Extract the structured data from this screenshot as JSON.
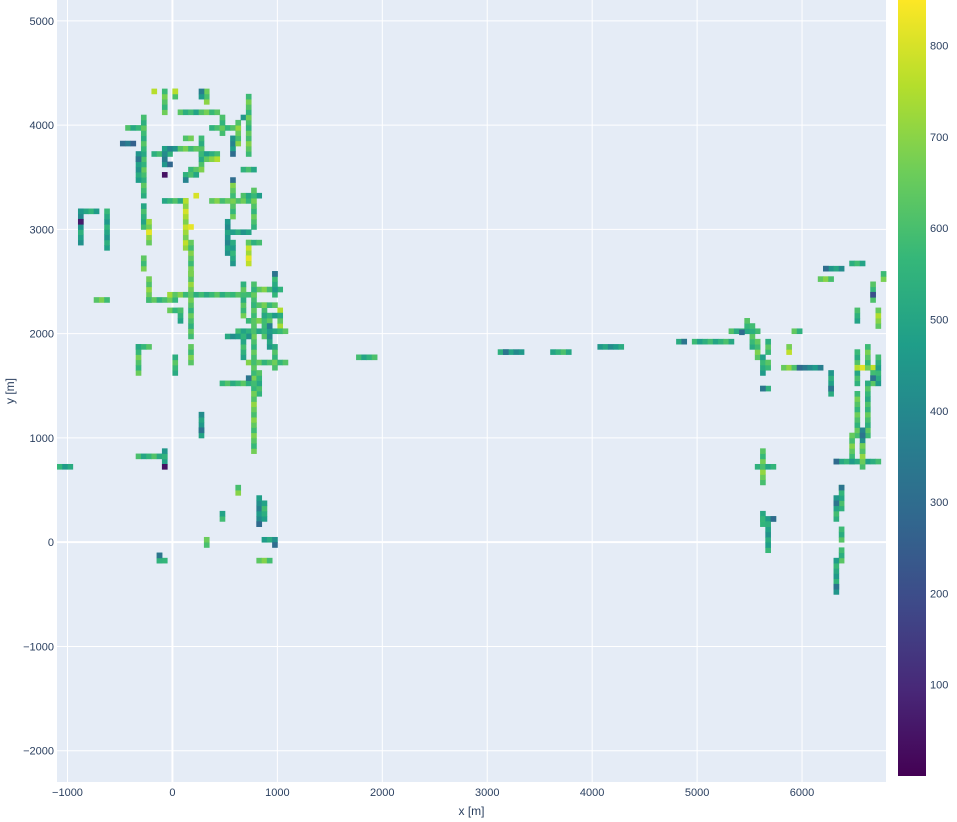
{
  "chart_data": {
    "type": "heatmap",
    "title": "",
    "xlabel": "x [m]",
    "ylabel": "y [m]",
    "xlim": [
      -1100,
      6800
    ],
    "ylim": [
      -2300,
      5200
    ],
    "cell_size": 50,
    "grid": true,
    "background": "#e5ecf6",
    "gridline_color": "#ffffff",
    "colorscale": "viridis",
    "zlim": [
      0,
      850
    ],
    "x_ticks": [
      -1000,
      0,
      1000,
      2000,
      3000,
      4000,
      5000,
      6000
    ],
    "x_tick_labels": [
      "−1000",
      "0",
      "1000",
      "2000",
      "3000",
      "4000",
      "5000",
      "6000"
    ],
    "y_ticks": [
      -2000,
      -1000,
      0,
      1000,
      2000,
      3000,
      4000,
      5000
    ],
    "y_tick_labels": [
      "−2000",
      "−1000",
      "0",
      "1000",
      "2000",
      "3000",
      "4000",
      "5000"
    ],
    "colorbar": {
      "ticks": [
        100,
        200,
        300,
        400,
        500,
        600,
        700,
        800
      ],
      "tick_labels": [
        "100",
        "200",
        "300",
        "400",
        "500",
        "600",
        "700",
        "800"
      ],
      "position": "right"
    },
    "segments": [
      {
        "x": [
          -900,
          -750
        ],
        "y": 3150,
        "z": 520
      },
      {
        "x": -900,
        "y": [
          2850,
          3150
        ],
        "z": 470
      },
      {
        "x": -650,
        "y": [
          2800,
          3150
        ],
        "z": 500
      },
      {
        "x": [
          -750,
          -650
        ],
        "y": 2300,
        "z": 610
      },
      {
        "x": [
          -1100,
          -1000
        ],
        "y": 680,
        "z": 520
      },
      {
        "x": [
          -450,
          -300
        ],
        "y": 3950,
        "z": 540
      },
      {
        "x": -300,
        "y": [
          3300,
          4050
        ],
        "z": 580
      },
      {
        "x": [
          -500,
          -400
        ],
        "y": 3800,
        "z": 330
      },
      {
        "x": -350,
        "y": [
          3450,
          3700
        ],
        "z": 470
      },
      {
        "x": -300,
        "y": [
          3000,
          3200
        ],
        "z": 560
      },
      {
        "x": -300,
        "y": [
          2600,
          2700
        ],
        "z": 620
      },
      {
        "x": -250,
        "y": [
          2850,
          3050
        ],
        "z": 720
      },
      {
        "x": -250,
        "y": [
          2300,
          2500
        ],
        "z": 640
      },
      {
        "x": [
          -250,
          0
        ],
        "y": 2300,
        "z": 600
      },
      {
        "x": [
          -200,
          -50
        ],
        "y": 3700,
        "z": 520
      },
      {
        "x": [
          -100,
          0
        ],
        "y": 3750,
        "z": 440
      },
      {
        "x": -100,
        "y": [
          3600,
          3700
        ],
        "z": 380
      },
      {
        "x": [
          -100,
          100
        ],
        "y": 3250,
        "z": 560
      },
      {
        "x": 100,
        "y": [
          2800,
          3250
        ],
        "z": 740
      },
      {
        "x": 150,
        "y": [
          2550,
          2850
        ],
        "z": 620
      },
      {
        "x": [
          -50,
          100
        ],
        "y": 2350,
        "z": 700
      },
      {
        "x": [
          -50,
          50
        ],
        "y": 2200,
        "z": 600
      },
      {
        "x": 50,
        "y": [
          2100,
          2200
        ],
        "z": 560
      },
      {
        "x": 150,
        "y": [
          2350,
          2550
        ],
        "z": 650
      },
      {
        "x": 150,
        "y": [
          1950,
          2350
        ],
        "z": 600
      },
      {
        "x": [
          100,
          250
        ],
        "y": 2350,
        "z": 560
      },
      {
        "x": -100,
        "y": [
          4100,
          4300
        ],
        "z": 620
      },
      {
        "x": [
          50,
          200
        ],
        "y": 4100,
        "z": 560
      },
      {
        "x": 0,
        "y": [
          4250,
          4300
        ],
        "z": 660
      },
      {
        "x": [
          100,
          150
        ],
        "y": 3850,
        "z": 640
      },
      {
        "x": [
          50,
          250
        ],
        "y": 3750,
        "z": 620
      },
      {
        "x": 250,
        "y": [
          3600,
          3850
        ],
        "z": 580
      },
      {
        "x": [
          250,
          400
        ],
        "y": 3700,
        "z": 520
      },
      {
        "x": [
          150,
          250
        ],
        "y": 3550,
        "z": 640
      },
      {
        "x": [
          300,
          400
        ],
        "y": 3650,
        "z": 680
      },
      {
        "x": [
          100,
          200
        ],
        "y": 3500,
        "z": 560
      },
      {
        "x": [
          250,
          400
        ],
        "y": 4100,
        "z": 600
      },
      {
        "x": 300,
        "y": [
          4200,
          4300
        ],
        "z": 660
      },
      {
        "x": 250,
        "y": [
          4250,
          4300
        ],
        "z": 390
      },
      {
        "x": [
          350,
          450
        ],
        "y": 3950,
        "z": 600
      },
      {
        "x": 450,
        "y": [
          3900,
          4050
        ],
        "z": 620
      },
      {
        "x": [
          500,
          600
        ],
        "y": 3950,
        "z": 560
      },
      {
        "x": 550,
        "y": [
          3750,
          3850
        ],
        "z": 450
      },
      {
        "x": 600,
        "y": [
          3800,
          4000
        ],
        "z": 640
      },
      {
        "x": [
          650,
          700
        ],
        "y": 4050,
        "z": 520
      },
      {
        "x": 700,
        "y": [
          3700,
          4250
        ],
        "z": 620
      },
      {
        "x": [
          650,
          750
        ],
        "y": 3550,
        "z": 560
      },
      {
        "x": [
          350,
          700
        ],
        "y": 3250,
        "z": 620
      },
      {
        "x": 550,
        "y": [
          3100,
          3400
        ],
        "z": 620
      },
      {
        "x": [
          650,
          800
        ],
        "y": 3300,
        "z": 540
      },
      {
        "x": 750,
        "y": [
          3000,
          3350
        ],
        "z": 600
      },
      {
        "x": 500,
        "y": [
          2750,
          3050
        ],
        "z": 460
      },
      {
        "x": [
          550,
          700
        ],
        "y": 2950,
        "z": 480
      },
      {
        "x": 700,
        "y": [
          2650,
          2850
        ],
        "z": 740
      },
      {
        "x": [
          700,
          800
        ],
        "y": 2850,
        "z": 580
      },
      {
        "x": 550,
        "y": [
          2650,
          2850
        ],
        "z": 520
      },
      {
        "x": [
          300,
          500
        ],
        "y": 2350,
        "z": 560
      },
      {
        "x": [
          550,
          750
        ],
        "y": 2350,
        "z": 580
      },
      {
        "x": [
          800,
          1000
        ],
        "y": 2400,
        "z": 620
      },
      {
        "x": 950,
        "y": [
          2350,
          2550
        ],
        "z": 520
      },
      {
        "x": 650,
        "y": [
          2150,
          2450
        ],
        "z": 600
      },
      {
        "x": 750,
        "y": [
          1450,
          2450
        ],
        "z": 620
      },
      {
        "x": 850,
        "y": [
          1950,
          2250
        ],
        "z": 650
      },
      {
        "x": 1000,
        "y": [
          2000,
          2200
        ],
        "z": 680
      },
      {
        "x": [
          600,
          1050
        ],
        "y": 2000,
        "z": 560
      },
      {
        "x": [
          500,
          700
        ],
        "y": 1950,
        "z": 460
      },
      {
        "x": [
          700,
          900
        ],
        "y": 2100,
        "z": 640
      },
      {
        "x": [
          750,
          950
        ],
        "y": 2250,
        "z": 600
      },
      {
        "x": [
          850,
          1000
        ],
        "y": 2150,
        "z": 520
      },
      {
        "x": 900,
        "y": [
          1850,
          2050
        ],
        "z": 440
      },
      {
        "x": 950,
        "y": [
          1650,
          1850
        ],
        "z": 560
      },
      {
        "x": [
          700,
          1050
        ],
        "y": 1700,
        "z": 620
      },
      {
        "x": 650,
        "y": [
          1750,
          1950
        ],
        "z": 540
      },
      {
        "x": 800,
        "y": [
          1400,
          1600
        ],
        "z": 580
      },
      {
        "x": [
          450,
          750
        ],
        "y": 1500,
        "z": 560
      },
      {
        "x": 750,
        "y": [
          850,
          1400
        ],
        "z": 640
      },
      {
        "x": -350,
        "y": [
          1600,
          1850
        ],
        "z": 600
      },
      {
        "x": [
          -350,
          -250
        ],
        "y": 1850,
        "z": 580
      },
      {
        "x": 0,
        "y": [
          1600,
          1750
        ],
        "z": 560
      },
      {
        "x": 150,
        "y": [
          1700,
          1850
        ],
        "z": 640
      },
      {
        "x": 250,
        "y": [
          1000,
          1200
        ],
        "z": 480
      },
      {
        "x": [
          -350,
          -100
        ],
        "y": 800,
        "z": 560
      },
      {
        "x": -100,
        "y": [
          700,
          850
        ],
        "z": 520
      },
      {
        "x": [
          -150,
          -100
        ],
        "y": -200,
        "z": 560
      },
      {
        "x": -150,
        "y": [
          -150,
          -200
        ],
        "z": 520
      },
      {
        "x": 300,
        "y": [
          -50,
          0
        ],
        "z": 600
      },
      {
        "x": 450,
        "y": [
          200,
          250
        ],
        "z": 560
      },
      {
        "x": 600,
        "y": [
          450,
          500
        ],
        "z": 640
      },
      {
        "x": 800,
        "y": [
          150,
          400
        ],
        "z": 420
      },
      {
        "x": 850,
        "y": [
          200,
          350
        ],
        "z": 520
      },
      {
        "x": [
          850,
          950
        ],
        "y": 0,
        "z": 480
      },
      {
        "x": [
          800,
          900
        ],
        "y": -200,
        "z": 620
      },
      {
        "x": [
          1750,
          1900
        ],
        "y": 1750,
        "z": 550
      },
      {
        "x": [
          3100,
          3300
        ],
        "y": 1800,
        "z": 470
      },
      {
        "x": [
          3600,
          3750
        ],
        "y": 1800,
        "z": 550
      },
      {
        "x": [
          4050,
          4250
        ],
        "y": 1850,
        "z": 480
      },
      {
        "x": [
          4800,
          4850
        ],
        "y": 1900,
        "z": 520
      },
      {
        "x": [
          4950,
          5300
        ],
        "y": 1920,
        "z": 550
      },
      {
        "x": [
          5300,
          5550
        ],
        "y": 1990,
        "z": 560
      },
      {
        "x": 5450,
        "y": [
          2000,
          2080
        ],
        "z": 580
      },
      {
        "x": 5500,
        "y": [
          1850,
          2050
        ],
        "z": 560
      },
      {
        "x": 5550,
        "y": [
          1750,
          1900
        ],
        "z": 640
      },
      {
        "x": 5650,
        "y": [
          1800,
          1900
        ],
        "z": 560
      },
      {
        "x": [
          5900,
          5950
        ],
        "y": 2000,
        "z": 600
      },
      {
        "x": 5850,
        "y": [
          1800,
          1850
        ],
        "z": 700
      },
      {
        "x": 5600,
        "y": [
          1600,
          1750
        ],
        "z": 520
      },
      {
        "x": 5650,
        "y": [
          1650,
          1700
        ],
        "z": 600
      },
      {
        "x": [
          5800,
          5900
        ],
        "y": 1650,
        "z": 650
      },
      {
        "x": [
          5950,
          6150
        ],
        "y": 1650,
        "z": 420
      },
      {
        "x": 6250,
        "y": [
          1400,
          1600
        ],
        "z": 470
      },
      {
        "x": [
          5600,
          5650
        ],
        "y": 1450,
        "z": 560
      },
      {
        "x": 5600,
        "y": [
          550,
          850
        ],
        "z": 640
      },
      {
        "x": [
          5550,
          5700
        ],
        "y": 680,
        "z": 560
      },
      {
        "x": 5600,
        "y": [
          150,
          250
        ],
        "z": 540
      },
      {
        "x": [
          5600,
          5700
        ],
        "y": 200,
        "z": 520
      },
      {
        "x": 5650,
        "y": [
          -100,
          150
        ],
        "z": 500
      },
      {
        "x": [
          6200,
          6350
        ],
        "y": 2600,
        "z": 450
      },
      {
        "x": [
          6450,
          6550
        ],
        "y": 2650,
        "z": 560
      },
      {
        "x": [
          6150,
          6250
        ],
        "y": 2500,
        "z": 640
      },
      {
        "x": 6650,
        "y": [
          2300,
          2450
        ],
        "z": 580
      },
      {
        "x": 6750,
        "y": [
          2500,
          2550
        ],
        "z": 620
      },
      {
        "x": 6500,
        "y": [
          2100,
          2200
        ],
        "z": 560
      },
      {
        "x": 6700,
        "y": [
          2050,
          2200
        ],
        "z": 680
      },
      {
        "x": 6500,
        "y": [
          1500,
          1800
        ],
        "z": 560
      },
      {
        "x": [
          6500,
          6650
        ],
        "y": 1650,
        "z": 740
      },
      {
        "x": 6600,
        "y": [
          1650,
          1850
        ],
        "z": 620
      },
      {
        "x": 6650,
        "y": [
          1500,
          1600
        ],
        "z": 560
      },
      {
        "x": 6700,
        "y": [
          1500,
          1750
        ],
        "z": 520
      },
      {
        "x": 6500,
        "y": [
          1000,
          1400
        ],
        "z": 620
      },
      {
        "x": 6600,
        "y": [
          1000,
          1500
        ],
        "z": 580
      },
      {
        "x": 6550,
        "y": [
          850,
          1050
        ],
        "z": 440
      },
      {
        "x": 6450,
        "y": [
          750,
          1000
        ],
        "z": 620
      },
      {
        "x": [
          6300,
          6700
        ],
        "y": 750,
        "z": 520
      },
      {
        "x": 6550,
        "y": [
          700,
          900
        ],
        "z": 640
      },
      {
        "x": 6350,
        "y": [
          300,
          500
        ],
        "z": 560
      },
      {
        "x": 6300,
        "y": [
          200,
          400
        ],
        "z": 520
      },
      {
        "x": 6350,
        "y": [
          0,
          100
        ],
        "z": 580
      },
      {
        "x": 6350,
        "y": [
          -200,
          -100
        ],
        "z": 560
      },
      {
        "x": 6300,
        "y": [
          -500,
          -200
        ],
        "z": 500
      }
    ],
    "cells": [
      {
        "x": -900,
        "y": 3050,
        "z": 60
      },
      {
        "x": -100,
        "y": 3500,
        "z": 40
      },
      {
        "x": -100,
        "y": 700,
        "z": 40
      },
      {
        "x": 6650,
        "y": 2350,
        "z": 200
      },
      {
        "x": 550,
        "y": 3450,
        "z": 300
      },
      {
        "x": 100,
        "y": 3450,
        "z": 380
      },
      {
        "x": -50,
        "y": 3600,
        "z": 280
      },
      {
        "x": 550,
        "y": 3700,
        "z": 300
      },
      {
        "x": 950,
        "y": 2550,
        "z": 320
      },
      {
        "x": 5950,
        "y": 1650,
        "z": 290
      },
      {
        "x": 6200,
        "y": 2600,
        "z": 300
      },
      {
        "x": 6300,
        "y": 750,
        "z": 290
      },
      {
        "x": 5700,
        "y": 200,
        "z": 290
      },
      {
        "x": 800,
        "y": 150,
        "z": 290
      },
      {
        "x": 950,
        "y": -50,
        "z": 300
      },
      {
        "x": 250,
        "y": 1050,
        "z": 320
      },
      {
        "x": 700,
        "y": 1550,
        "z": 330
      },
      {
        "x": 6550,
        "y": 1000,
        "z": 330
      },
      {
        "x": 6650,
        "y": 1550,
        "z": 330
      },
      {
        "x": 5400,
        "y": 1990,
        "z": 300
      },
      {
        "x": 4850,
        "y": 1900,
        "z": 330
      },
      {
        "x": 3150,
        "y": 1800,
        "z": 330
      },
      {
        "x": -150,
        "y": -150,
        "z": 330
      },
      {
        "x": 5600,
        "y": 1450,
        "z": 330
      },
      {
        "x": 6300,
        "y": 350,
        "z": 330
      },
      {
        "x": -350,
        "y": 3650,
        "z": 330
      },
      {
        "x": 6350,
        "y": 500,
        "z": 330
      },
      {
        "x": 6300,
        "y": -450,
        "z": 330
      },
      {
        "x": 6250,
        "y": 1450,
        "z": 330
      },
      {
        "x": 0,
        "y": 4300,
        "z": 760
      },
      {
        "x": -200,
        "y": 4300,
        "z": 760
      },
      {
        "x": 200,
        "y": 3300,
        "z": 800
      },
      {
        "x": 700,
        "y": 2700,
        "z": 820
      },
      {
        "x": 150,
        "y": 3000,
        "z": 820
      },
      {
        "x": -250,
        "y": 2950,
        "z": 820
      }
    ]
  }
}
